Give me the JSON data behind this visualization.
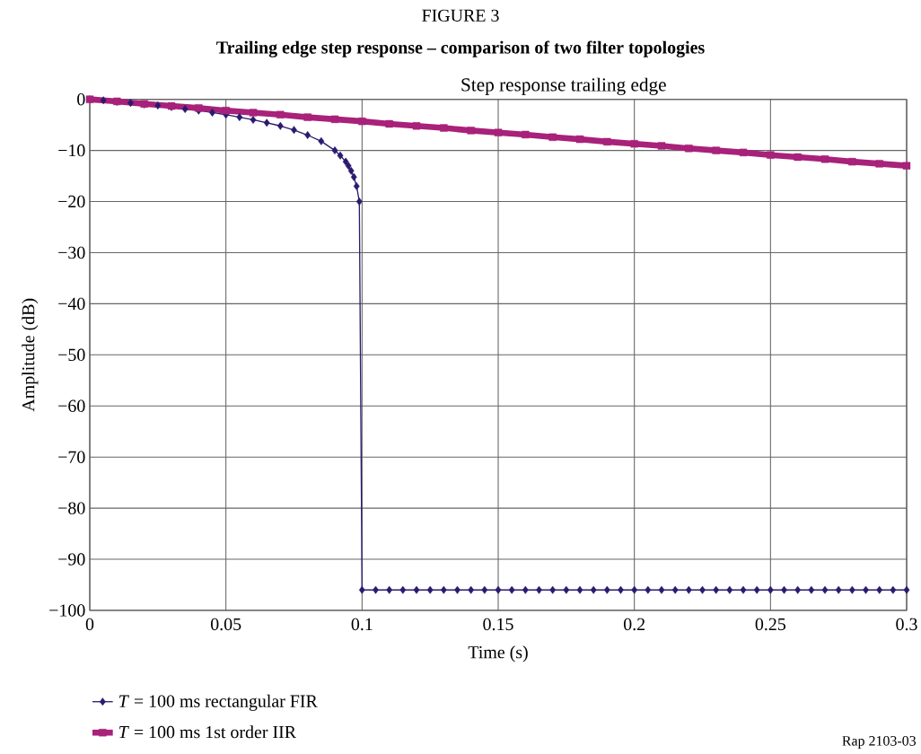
{
  "chart_data": {
    "type": "line",
    "title": "FIGURE 3",
    "subtitle": "**Trailing edge step response – comparison of two filter topologies**",
    "xlabel": "Time (s)",
    "ylabel": "Amplitude (dB)",
    "annotations": [
      "Step response trailing edge",
      "Rap 2103-03"
    ],
    "xlim": [
      0,
      0.3
    ],
    "ylim": [
      -100,
      0
    ],
    "xticks": [
      0,
      0.05,
      0.1,
      0.15,
      0.2,
      0.25,
      0.3
    ],
    "yticks": [
      {
        "value": -100,
        "label": "−100"
      },
      {
        "value": -90,
        "label": "−90"
      },
      {
        "value": -80,
        "label": "−80"
      },
      {
        "value": -70,
        "label": "−70"
      },
      {
        "value": -60,
        "label": "−60"
      },
      {
        "value": -50,
        "label": "−50"
      },
      {
        "value": -40,
        "label": "−40"
      },
      {
        "value": -30,
        "label": "−30"
      },
      {
        "value": -20,
        "label": "−20"
      },
      {
        "value": -10,
        "label": "−10"
      },
      0
    ],
    "grid": true,
    "legend": "bottom",
    "series": [
      {
        "name": "*T* = 100 ms rectangular FIR",
        "color": "#2b1a6e",
        "marker": "diamond",
        "x": [
          0,
          0.005,
          0.01,
          0.015,
          0.02,
          0.025,
          0.03,
          0.035,
          0.04,
          0.045,
          0.05,
          0.055,
          0.06,
          0.065,
          0.07,
          0.075,
          0.08,
          0.085,
          0.09,
          0.092,
          0.094,
          0.095,
          0.096,
          0.097,
          0.098,
          0.099,
          0.1,
          0.105,
          0.11,
          0.115,
          0.12,
          0.125,
          0.13,
          0.135,
          0.14,
          0.145,
          0.15,
          0.155,
          0.16,
          0.165,
          0.17,
          0.175,
          0.18,
          0.185,
          0.19,
          0.195,
          0.2,
          0.205,
          0.21,
          0.215,
          0.22,
          0.225,
          0.23,
          0.235,
          0.24,
          0.245,
          0.25,
          0.255,
          0.26,
          0.265,
          0.27,
          0.275,
          0.28,
          0.285,
          0.29,
          0.295,
          0.3
        ],
        "values": [
          0,
          -0.2,
          -0.5,
          -0.7,
          -1.0,
          -1.2,
          -1.5,
          -1.9,
          -2.2,
          -2.6,
          -3.0,
          -3.5,
          -4.0,
          -4.6,
          -5.2,
          -6.0,
          -7.0,
          -8.2,
          -10.0,
          -11.0,
          -12.2,
          -13.0,
          -14.0,
          -15.2,
          -17.0,
          -20.0,
          -96,
          -96,
          -96,
          -96,
          -96,
          -96,
          -96,
          -96,
          -96,
          -96,
          -96,
          -96,
          -96,
          -96,
          -96,
          -96,
          -96,
          -96,
          -96,
          -96,
          -96,
          -96,
          -96,
          -96,
          -96,
          -96,
          -96,
          -96,
          -96,
          -96,
          -96,
          -96,
          -96,
          -96,
          -96,
          -96,
          -96,
          -96,
          -96,
          -96,
          -96
        ]
      },
      {
        "name": "*T* = 100 ms 1st order IIR",
        "color": "#a8217a",
        "marker": "square",
        "x": [
          0,
          0.01,
          0.02,
          0.03,
          0.04,
          0.05,
          0.06,
          0.07,
          0.08,
          0.09,
          0.1,
          0.11,
          0.12,
          0.13,
          0.14,
          0.15,
          0.16,
          0.17,
          0.18,
          0.19,
          0.2,
          0.21,
          0.22,
          0.23,
          0.24,
          0.25,
          0.26,
          0.27,
          0.28,
          0.29,
          0.3
        ],
        "values": [
          0,
          -0.4,
          -0.9,
          -1.3,
          -1.7,
          -2.2,
          -2.6,
          -3.0,
          -3.5,
          -3.9,
          -4.3,
          -4.8,
          -5.2,
          -5.6,
          -6.1,
          -6.5,
          -6.9,
          -7.4,
          -7.8,
          -8.3,
          -8.7,
          -9.1,
          -9.6,
          -10.0,
          -10.4,
          -10.9,
          -11.3,
          -11.7,
          -12.2,
          -12.6,
          -13.0
        ]
      }
    ]
  }
}
